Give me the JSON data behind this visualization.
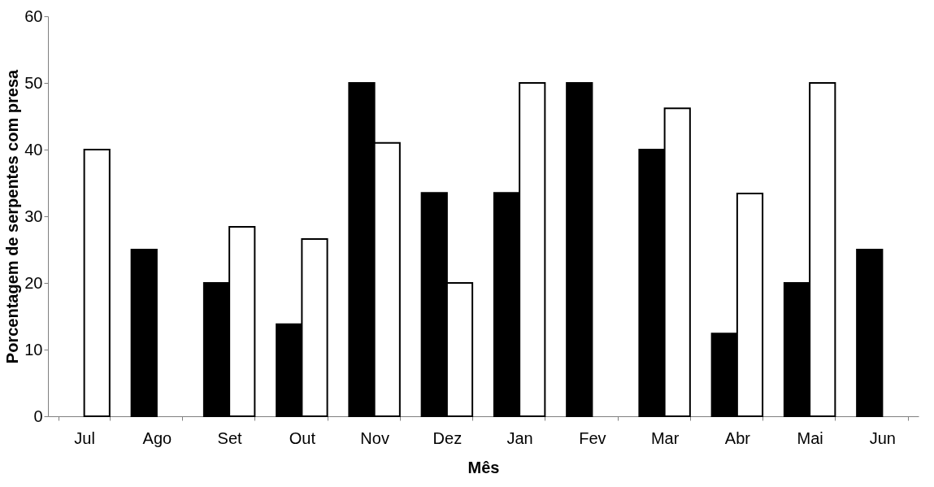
{
  "chart_data": {
    "type": "bar",
    "xlabel": "Mês",
    "ylabel": "Porcentagem de serpentes com presa",
    "categories": [
      "Jul",
      "Ago",
      "Set",
      "Out",
      "Nov",
      "Dez",
      "Jan",
      "Fev",
      "Mar",
      "Abr",
      "Mai",
      "Jun"
    ],
    "series": [
      {
        "color": "#000000",
        "values": [
          null,
          25,
          20,
          13.8,
          50,
          33.5,
          33.5,
          50,
          40,
          12.4,
          20,
          25
        ]
      },
      {
        "color": "#ffffff",
        "values": [
          40,
          null,
          28.4,
          26.6,
          41,
          20,
          50,
          null,
          46.2,
          33.4,
          50,
          null
        ]
      }
    ],
    "ylim": [
      0,
      60
    ],
    "yticks": [
      0,
      10,
      20,
      30,
      40,
      50,
      60
    ],
    "grid": false
  }
}
